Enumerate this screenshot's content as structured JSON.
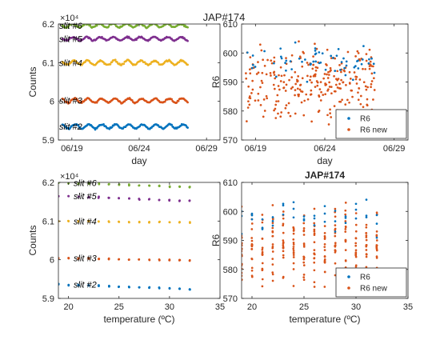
{
  "figure": {
    "title": "JAP#174"
  },
  "colors": {
    "slit2": "#0072BD",
    "slit3": "#D95319",
    "slit4": "#EDB120",
    "slit5": "#7E2F8E",
    "slit6": "#77AC30",
    "r6": "#0072BD",
    "r6new": "#D95319"
  },
  "chart_data": [
    {
      "id": "top-left",
      "type": "scatter",
      "title": "",
      "xlabel": "day",
      "ylabel": "Counts",
      "x_ticks": [
        "06/19",
        "06/24",
        "06/29"
      ],
      "xlim_days": [
        0,
        12
      ],
      "x_tick_days": [
        1,
        6,
        11
      ],
      "ylim": [
        59000,
        62000
      ],
      "y_ticks": [
        59000,
        60000,
        61000,
        62000
      ],
      "y_tick_labels": [
        "5.9",
        "6",
        "6.1",
        "6.2"
      ],
      "exponent_label": "×10⁴",
      "series": [
        {
          "name": "slit #2",
          "color_key": "slit2",
          "mean": 59350,
          "amp": 55,
          "x_range": [
            0.3,
            9.6
          ]
        },
        {
          "name": "slit #3",
          "color_key": "slit3",
          "mean": 60020,
          "amp": 55,
          "x_range": [
            0.3,
            9.6
          ]
        },
        {
          "name": "slit #4",
          "color_key": "slit4",
          "mean": 61000,
          "amp": 55,
          "x_range": [
            0.3,
            9.6
          ]
        },
        {
          "name": "slit #5",
          "color_key": "slit5",
          "mean": 61620,
          "amp": 45,
          "x_range": [
            0.3,
            9.6
          ]
        },
        {
          "name": "slit #6",
          "color_key": "slit6",
          "mean": 61960,
          "amp": 45,
          "x_range": [
            0.3,
            9.6
          ]
        }
      ]
    },
    {
      "id": "top-right",
      "type": "scatter",
      "title": "",
      "xlabel": "day",
      "ylabel": "R6",
      "x_ticks": [
        "06/19",
        "06/24",
        "06/29"
      ],
      "xlim_days": [
        0,
        12
      ],
      "x_tick_days": [
        1,
        6,
        11
      ],
      "ylim": [
        570,
        610
      ],
      "y_ticks": [
        570,
        580,
        590,
        600,
        610
      ],
      "legend": [
        "R6",
        "R6 new"
      ],
      "legend_location": "bottom-right",
      "x_range": [
        0.3,
        9.6
      ],
      "r6_center": 597,
      "r6new_center": 589
    },
    {
      "id": "bottom-left",
      "type": "scatter",
      "title": "",
      "xlabel": "temperature (ºC)",
      "ylabel": "Counts",
      "xlim": [
        19,
        35
      ],
      "x_ticks": [
        20,
        25,
        30,
        35
      ],
      "ylim": [
        59000,
        62000
      ],
      "y_ticks": [
        59000,
        60000,
        61000,
        62000
      ],
      "y_tick_labels": [
        "5.9",
        "6",
        "6.1",
        "6.2"
      ],
      "exponent_label": "×10⁴",
      "temperatures": [
        19,
        20,
        21,
        22,
        23,
        24,
        25,
        26,
        27,
        28,
        29,
        30,
        31,
        32
      ],
      "series": [
        {
          "name": "slit #2",
          "color_key": "slit2",
          "start": 59360,
          "end": 59240
        },
        {
          "name": "slit #3",
          "color_key": "slit3",
          "start": 60040,
          "end": 59980
        },
        {
          "name": "slit #4",
          "color_key": "slit4",
          "start": 61000,
          "end": 60960
        },
        {
          "name": "slit #5",
          "color_key": "slit5",
          "start": 61650,
          "end": 61520
        },
        {
          "name": "slit #6",
          "color_key": "slit6",
          "start": 61990,
          "end": 61880
        }
      ]
    },
    {
      "id": "bottom-right",
      "type": "scatter",
      "title": "JAP#174",
      "xlabel": "temperature (ºC)",
      "ylabel": "R6",
      "xlim": [
        19,
        35
      ],
      "x_ticks": [
        20,
        25,
        30,
        35
      ],
      "ylim": [
        570,
        610
      ],
      "y_ticks": [
        570,
        580,
        590,
        600,
        610
      ],
      "legend": [
        "R6",
        "R6 new"
      ],
      "legend_location": "bottom-right",
      "temperatures": [
        19,
        20,
        21,
        22,
        23,
        24,
        25,
        26,
        27,
        28,
        29,
        30,
        31,
        32
      ],
      "r6_center": 598,
      "r6new_center": 588
    }
  ]
}
